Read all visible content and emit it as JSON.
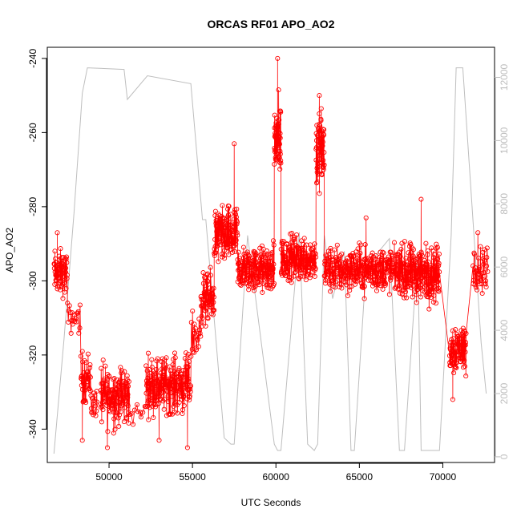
{
  "chart_data": {
    "type": "scatter",
    "title": "ORCAS RF01 APO_AO2",
    "xlabel": "UTC Seconds",
    "ylabel": "APO_AO2",
    "xlim": [
      46300,
      73100
    ],
    "ylim": [
      -349,
      -237
    ],
    "xticks": [
      50000,
      55000,
      60000,
      65000,
      70000
    ],
    "yticks": [
      -340,
      -320,
      -300,
      -280,
      -260,
      -240
    ],
    "y2lim": [
      -180,
      12950
    ],
    "y2ticks": [
      0,
      2000,
      4000,
      6000,
      8000,
      10000,
      12000
    ],
    "colors": {
      "apo": "#ff0000",
      "altitude": "#bebebe"
    },
    "altitude_series": {
      "x": [
        46700,
        47300,
        47900,
        48400,
        48700,
        50900,
        51100,
        52300,
        54900,
        55600,
        55800,
        56900,
        57300,
        57500,
        58300,
        59900,
        60100,
        60300,
        61400,
        61900,
        62300,
        62500,
        62900,
        63400,
        64100,
        64500,
        64700,
        65400,
        66800,
        67400,
        67700,
        68500,
        68700,
        69400,
        69800,
        70500,
        70800,
        71200,
        72300,
        72600
      ],
      "y": [
        100,
        3700,
        7700,
        11500,
        12300,
        12250,
        11300,
        12050,
        11800,
        7500,
        7500,
        600,
        400,
        400,
        7000,
        400,
        200,
        200,
        7100,
        400,
        200,
        400,
        7000,
        5000,
        6500,
        200,
        200,
        6000,
        6900,
        200,
        200,
        6500,
        200,
        200,
        200,
        7000,
        12300,
        12300,
        3600,
        2000
      ]
    },
    "apo_segments": [
      {
        "x0": 46700,
        "x1": 47500,
        "base": -298,
        "spread": 9,
        "n": 60
      },
      {
        "x0": 47500,
        "x1": 48300,
        "base": -310,
        "spread": 6,
        "n": 20
      },
      {
        "x0": 48300,
        "x1": 48900,
        "base": -326,
        "spread": 10,
        "n": 40
      },
      {
        "x0": 48900,
        "x1": 49300,
        "base": -333,
        "spread": 6,
        "n": 15
      },
      {
        "x0": 49500,
        "x1": 51200,
        "base": -331,
        "spread": 12,
        "n": 130
      },
      {
        "x0": 51200,
        "x1": 52200,
        "base": -336,
        "spread": 5,
        "n": 10
      },
      {
        "x0": 52200,
        "x1": 54900,
        "base": -328,
        "spread": 11,
        "n": 200
      },
      {
        "x0": 54900,
        "x1": 55500,
        "base": -315,
        "spread": 10,
        "n": 20
      },
      {
        "x0": 55500,
        "x1": 56300,
        "base": -305,
        "spread": 10,
        "n": 70
      },
      {
        "x0": 56300,
        "x1": 57700,
        "base": -288,
        "spread": 11,
        "n": 130
      },
      {
        "x0": 57700,
        "x1": 59900,
        "base": -297,
        "spread": 9,
        "n": 180
      },
      {
        "x0": 59900,
        "x1": 60300,
        "base": -262,
        "spread": 16,
        "n": 60
      },
      {
        "x0": 60300,
        "x1": 62400,
        "base": -294,
        "spread": 9,
        "n": 170
      },
      {
        "x0": 62400,
        "x1": 62900,
        "base": -265,
        "spread": 16,
        "n": 60
      },
      {
        "x0": 62900,
        "x1": 67600,
        "base": -297,
        "spread": 9,
        "n": 330
      },
      {
        "x0": 67600,
        "x1": 69800,
        "base": -298,
        "spread": 11,
        "n": 200
      },
      {
        "x0": 70400,
        "x1": 71400,
        "base": -318,
        "spread": 10,
        "n": 80
      },
      {
        "x0": 71800,
        "x1": 72700,
        "base": -297,
        "spread": 9,
        "n": 40
      }
    ],
    "apo_extremes": [
      {
        "x": 60100,
        "y": -240
      },
      {
        "x": 62600,
        "y": -250
      },
      {
        "x": 57500,
        "y": -263
      },
      {
        "x": 68700,
        "y": -278
      },
      {
        "x": 49900,
        "y": -345
      },
      {
        "x": 54700,
        "y": -345
      },
      {
        "x": 48400,
        "y": -343
      },
      {
        "x": 53000,
        "y": -343
      },
      {
        "x": 70600,
        "y": -332
      },
      {
        "x": 46900,
        "y": -287
      },
      {
        "x": 72100,
        "y": -287
      },
      {
        "x": 55300,
        "y": -316
      },
      {
        "x": 65400,
        "y": -283
      }
    ]
  }
}
